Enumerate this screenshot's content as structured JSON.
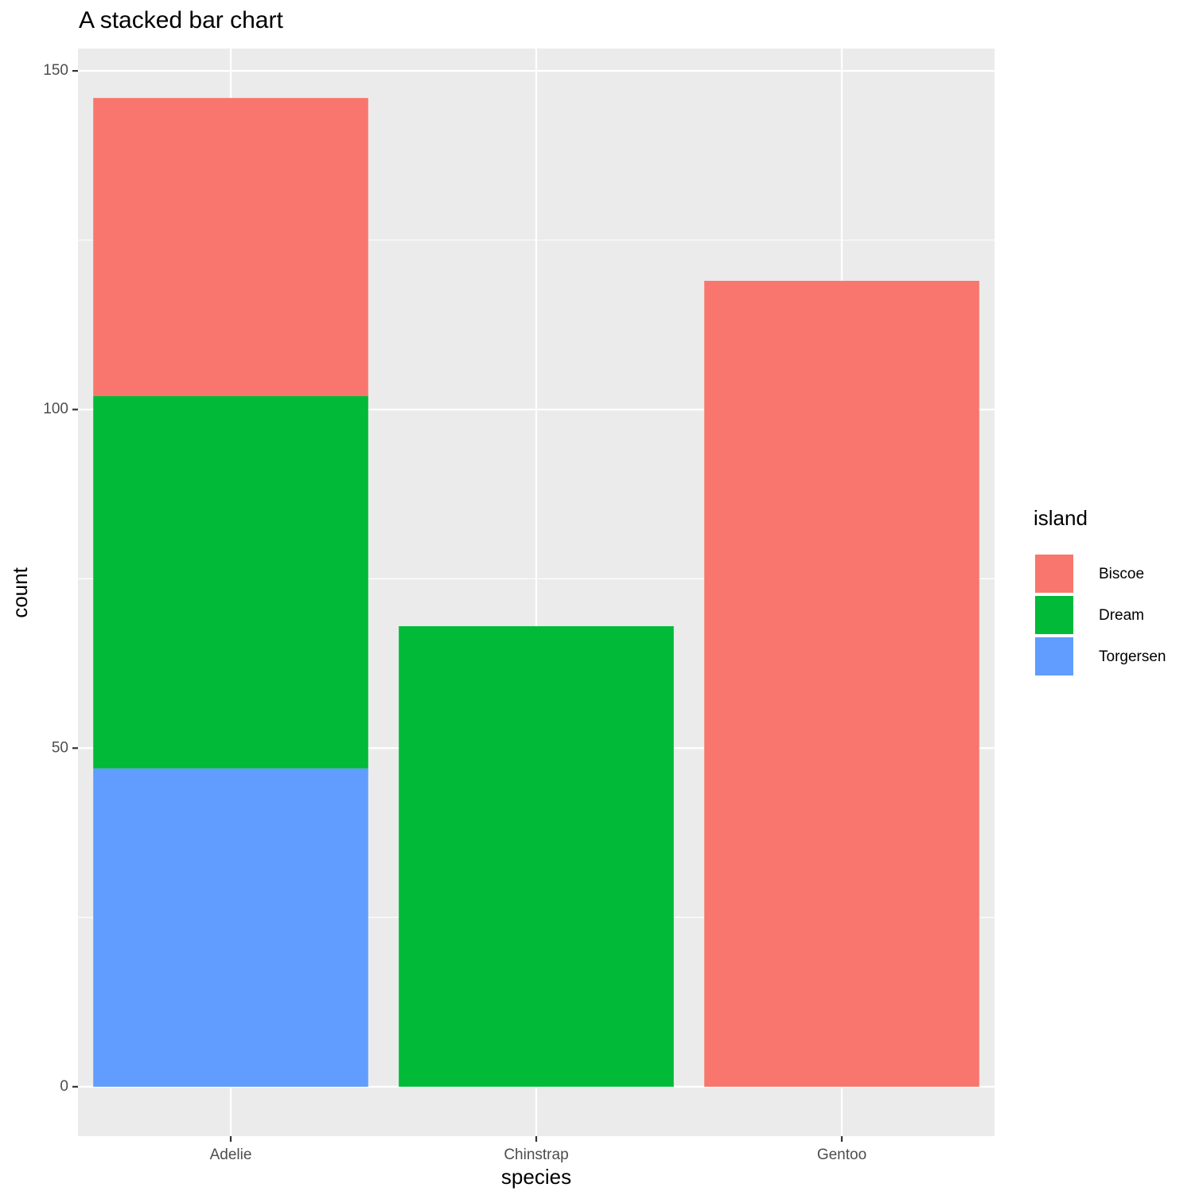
{
  "chart_data": {
    "type": "stacked_bar",
    "title": "A stacked bar chart",
    "x_label": "species",
    "y_label": "count",
    "categories": [
      "Adelie",
      "Chinstrap",
      "Gentoo"
    ],
    "series": [
      {
        "name": "Biscoe",
        "color": "#F8766D",
        "values": [
          44,
          null,
          119
        ]
      },
      {
        "name": "Dream",
        "color": "#00BA38",
        "values": [
          55,
          68,
          null
        ]
      },
      {
        "name": "Torgersen",
        "color": "#619CFF",
        "values": [
          47,
          null,
          null
        ]
      }
    ],
    "legend_title": "island",
    "legend_position": "right",
    "ylim": [
      -7.3,
      153.3
    ],
    "yticks": [
      0,
      50,
      100,
      150
    ],
    "minor_yticks": [
      25,
      75,
      125
    ],
    "grid": true
  }
}
